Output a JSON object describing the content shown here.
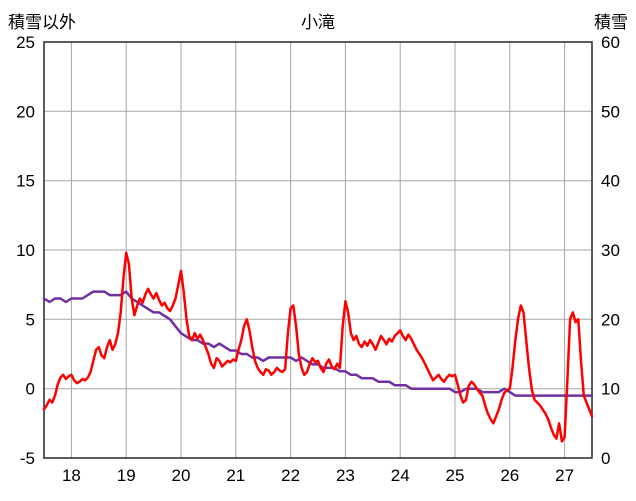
{
  "title": "小滝",
  "left_axis_label": "積雪以外",
  "right_axis_label": "積雪",
  "chart_data": {
    "type": "line",
    "title": "小滝",
    "x_range": [
      17.5,
      27.5
    ],
    "x_ticks": [
      18,
      19,
      20,
      21,
      22,
      23,
      24,
      25,
      26,
      27
    ],
    "left_axis": {
      "label": "積雪以外",
      "min": -5,
      "max": 25,
      "ticks": [
        -5,
        0,
        5,
        10,
        15,
        20,
        25
      ]
    },
    "right_axis": {
      "label": "積雪",
      "min": 0,
      "max": 60,
      "ticks": [
        0,
        10,
        20,
        30,
        40,
        50,
        60
      ]
    },
    "colors": {
      "grid": "#a6a6a6",
      "border": "#262626",
      "red_series": "#ff0000",
      "purple_series": "#7030a0"
    },
    "grid": true,
    "legend": "none",
    "series": [
      {
        "name": "積雪以外",
        "axis": "left",
        "color": "#ff0000",
        "points": [
          [
            17.5,
            -1.5
          ],
          [
            17.55,
            -1.2
          ],
          [
            17.6,
            -0.8
          ],
          [
            17.65,
            -1.0
          ],
          [
            17.7,
            -0.5
          ],
          [
            17.75,
            0.3
          ],
          [
            17.8,
            0.8
          ],
          [
            17.85,
            1.0
          ],
          [
            17.9,
            0.7
          ],
          [
            17.95,
            0.9
          ],
          [
            18.0,
            1.0
          ],
          [
            18.05,
            0.6
          ],
          [
            18.1,
            0.4
          ],
          [
            18.15,
            0.5
          ],
          [
            18.2,
            0.7
          ],
          [
            18.25,
            0.6
          ],
          [
            18.3,
            0.8
          ],
          [
            18.35,
            1.2
          ],
          [
            18.4,
            2.0
          ],
          [
            18.45,
            2.8
          ],
          [
            18.5,
            3.0
          ],
          [
            18.55,
            2.4
          ],
          [
            18.6,
            2.2
          ],
          [
            18.65,
            3.0
          ],
          [
            18.7,
            3.5
          ],
          [
            18.75,
            2.8
          ],
          [
            18.8,
            3.2
          ],
          [
            18.85,
            4.0
          ],
          [
            18.9,
            5.5
          ],
          [
            18.95,
            8.0
          ],
          [
            19.0,
            9.8
          ],
          [
            19.05,
            9.0
          ],
          [
            19.1,
            6.5
          ],
          [
            19.15,
            5.3
          ],
          [
            19.2,
            6.0
          ],
          [
            19.25,
            6.5
          ],
          [
            19.3,
            6.2
          ],
          [
            19.35,
            6.8
          ],
          [
            19.4,
            7.2
          ],
          [
            19.45,
            6.8
          ],
          [
            19.5,
            6.5
          ],
          [
            19.55,
            6.9
          ],
          [
            19.6,
            6.4
          ],
          [
            19.65,
            6.0
          ],
          [
            19.7,
            6.2
          ],
          [
            19.75,
            5.8
          ],
          [
            19.8,
            5.6
          ],
          [
            19.85,
            6.0
          ],
          [
            19.9,
            6.5
          ],
          [
            19.95,
            7.5
          ],
          [
            20.0,
            8.5
          ],
          [
            20.05,
            7.0
          ],
          [
            20.1,
            5.0
          ],
          [
            20.15,
            3.8
          ],
          [
            20.2,
            3.5
          ],
          [
            20.25,
            4.0
          ],
          [
            20.3,
            3.6
          ],
          [
            20.35,
            3.9
          ],
          [
            20.4,
            3.5
          ],
          [
            20.45,
            3.0
          ],
          [
            20.5,
            2.5
          ],
          [
            20.55,
            1.8
          ],
          [
            20.6,
            1.5
          ],
          [
            20.65,
            2.2
          ],
          [
            20.7,
            2.0
          ],
          [
            20.75,
            1.6
          ],
          [
            20.8,
            1.8
          ],
          [
            20.85,
            2.0
          ],
          [
            20.9,
            1.9
          ],
          [
            20.95,
            2.1
          ],
          [
            21.0,
            2.0
          ],
          [
            21.05,
            2.8
          ],
          [
            21.1,
            3.5
          ],
          [
            21.15,
            4.5
          ],
          [
            21.2,
            5.0
          ],
          [
            21.25,
            4.2
          ],
          [
            21.3,
            3.0
          ],
          [
            21.35,
            2.0
          ],
          [
            21.4,
            1.5
          ],
          [
            21.45,
            1.2
          ],
          [
            21.5,
            1.0
          ],
          [
            21.55,
            1.4
          ],
          [
            21.6,
            1.3
          ],
          [
            21.65,
            1.0
          ],
          [
            21.7,
            1.2
          ],
          [
            21.75,
            1.5
          ],
          [
            21.8,
            1.3
          ],
          [
            21.85,
            1.2
          ],
          [
            21.9,
            1.4
          ],
          [
            21.95,
            4.0
          ],
          [
            22.0,
            5.8
          ],
          [
            22.05,
            6.0
          ],
          [
            22.1,
            4.5
          ],
          [
            22.15,
            2.5
          ],
          [
            22.2,
            1.5
          ],
          [
            22.25,
            1.0
          ],
          [
            22.3,
            1.2
          ],
          [
            22.35,
            1.8
          ],
          [
            22.4,
            2.2
          ],
          [
            22.45,
            1.9
          ],
          [
            22.5,
            2.0
          ],
          [
            22.55,
            1.5
          ],
          [
            22.6,
            1.2
          ],
          [
            22.65,
            1.8
          ],
          [
            22.7,
            2.1
          ],
          [
            22.75,
            1.6
          ],
          [
            22.8,
            1.4
          ],
          [
            22.85,
            1.8
          ],
          [
            22.9,
            1.5
          ],
          [
            22.95,
            4.5
          ],
          [
            23.0,
            6.3
          ],
          [
            23.05,
            5.5
          ],
          [
            23.1,
            4.0
          ],
          [
            23.15,
            3.5
          ],
          [
            23.2,
            3.8
          ],
          [
            23.25,
            3.2
          ],
          [
            23.3,
            3.0
          ],
          [
            23.35,
            3.4
          ],
          [
            23.4,
            3.1
          ],
          [
            23.45,
            3.5
          ],
          [
            23.5,
            3.2
          ],
          [
            23.55,
            2.8
          ],
          [
            23.6,
            3.3
          ],
          [
            23.65,
            3.8
          ],
          [
            23.7,
            3.5
          ],
          [
            23.75,
            3.2
          ],
          [
            23.8,
            3.6
          ],
          [
            23.85,
            3.4
          ],
          [
            23.9,
            3.8
          ],
          [
            23.95,
            4.0
          ],
          [
            24.0,
            4.2
          ],
          [
            24.05,
            3.8
          ],
          [
            24.1,
            3.5
          ],
          [
            24.15,
            3.9
          ],
          [
            24.2,
            3.6
          ],
          [
            24.25,
            3.2
          ],
          [
            24.3,
            2.8
          ],
          [
            24.35,
            2.5
          ],
          [
            24.4,
            2.2
          ],
          [
            24.45,
            1.8
          ],
          [
            24.5,
            1.4
          ],
          [
            24.55,
            1.0
          ],
          [
            24.6,
            0.6
          ],
          [
            24.65,
            0.8
          ],
          [
            24.7,
            1.0
          ],
          [
            24.75,
            0.7
          ],
          [
            24.8,
            0.5
          ],
          [
            24.85,
            0.8
          ],
          [
            24.9,
            1.0
          ],
          [
            24.95,
            0.9
          ],
          [
            25.0,
            1.0
          ],
          [
            25.05,
            0.3
          ],
          [
            25.1,
            -0.5
          ],
          [
            25.15,
            -1.0
          ],
          [
            25.2,
            -0.8
          ],
          [
            25.25,
            0.2
          ],
          [
            25.3,
            0.5
          ],
          [
            25.35,
            0.3
          ],
          [
            25.4,
            0.0
          ],
          [
            25.45,
            -0.3
          ],
          [
            25.5,
            -0.5
          ],
          [
            25.55,
            -1.2
          ],
          [
            25.6,
            -1.8
          ],
          [
            25.65,
            -2.2
          ],
          [
            25.7,
            -2.5
          ],
          [
            25.75,
            -2.0
          ],
          [
            25.8,
            -1.5
          ],
          [
            25.85,
            -0.8
          ],
          [
            25.9,
            -0.3
          ],
          [
            25.95,
            -0.1
          ],
          [
            26.0,
            0.0
          ],
          [
            26.05,
            1.5
          ],
          [
            26.1,
            3.5
          ],
          [
            26.15,
            5.0
          ],
          [
            26.2,
            6.0
          ],
          [
            26.25,
            5.5
          ],
          [
            26.3,
            3.5
          ],
          [
            26.35,
            1.5
          ],
          [
            26.4,
            0.0
          ],
          [
            26.45,
            -0.8
          ],
          [
            26.5,
            -1.0
          ],
          [
            26.55,
            -1.2
          ],
          [
            26.6,
            -1.5
          ],
          [
            26.65,
            -1.8
          ],
          [
            26.7,
            -2.2
          ],
          [
            26.75,
            -2.8
          ],
          [
            26.8,
            -3.3
          ],
          [
            26.85,
            -3.6
          ],
          [
            26.9,
            -2.5
          ],
          [
            26.95,
            -3.8
          ],
          [
            27.0,
            -3.5
          ],
          [
            27.05,
            0.5
          ],
          [
            27.1,
            5.0
          ],
          [
            27.15,
            5.5
          ],
          [
            27.2,
            4.8
          ],
          [
            27.25,
            5.0
          ],
          [
            27.3,
            2.0
          ],
          [
            27.35,
            -0.5
          ],
          [
            27.4,
            -1.0
          ],
          [
            27.45,
            -1.5
          ],
          [
            27.5,
            -2.0
          ]
        ]
      },
      {
        "name": "積雪",
        "axis": "right",
        "color": "#7030a0",
        "points": [
          [
            17.5,
            23
          ],
          [
            17.6,
            22.5
          ],
          [
            17.7,
            23
          ],
          [
            17.8,
            23
          ],
          [
            17.9,
            22.5
          ],
          [
            18.0,
            23
          ],
          [
            18.1,
            23
          ],
          [
            18.2,
            23
          ],
          [
            18.3,
            23.5
          ],
          [
            18.4,
            24
          ],
          [
            18.5,
            24
          ],
          [
            18.6,
            24
          ],
          [
            18.7,
            23.5
          ],
          [
            18.8,
            23.5
          ],
          [
            18.9,
            23.5
          ],
          [
            19.0,
            24
          ],
          [
            19.05,
            23.5
          ],
          [
            19.1,
            23
          ],
          [
            19.2,
            22.5
          ],
          [
            19.3,
            22
          ],
          [
            19.4,
            21.5
          ],
          [
            19.5,
            21
          ],
          [
            19.6,
            21
          ],
          [
            19.7,
            20.5
          ],
          [
            19.8,
            20
          ],
          [
            19.9,
            19
          ],
          [
            20.0,
            18
          ],
          [
            20.1,
            17.5
          ],
          [
            20.2,
            17
          ],
          [
            20.3,
            17
          ],
          [
            20.4,
            16.5
          ],
          [
            20.5,
            16.5
          ],
          [
            20.6,
            16
          ],
          [
            20.7,
            16.5
          ],
          [
            20.8,
            16
          ],
          [
            20.9,
            15.5
          ],
          [
            21.0,
            15.5
          ],
          [
            21.1,
            15
          ],
          [
            21.2,
            15
          ],
          [
            21.3,
            14.5
          ],
          [
            21.4,
            14.5
          ],
          [
            21.5,
            14
          ],
          [
            21.6,
            14.5
          ],
          [
            21.7,
            14.5
          ],
          [
            21.8,
            14.5
          ],
          [
            21.9,
            14.5
          ],
          [
            22.0,
            14.5
          ],
          [
            22.1,
            14
          ],
          [
            22.2,
            14.5
          ],
          [
            22.3,
            14
          ],
          [
            22.4,
            13.5
          ],
          [
            22.5,
            13.5
          ],
          [
            22.6,
            13
          ],
          [
            22.7,
            13
          ],
          [
            22.8,
            13
          ],
          [
            22.9,
            12.5
          ],
          [
            23.0,
            12.5
          ],
          [
            23.1,
            12
          ],
          [
            23.2,
            12
          ],
          [
            23.3,
            11.5
          ],
          [
            23.4,
            11.5
          ],
          [
            23.5,
            11.5
          ],
          [
            23.6,
            11
          ],
          [
            23.7,
            11
          ],
          [
            23.8,
            11
          ],
          [
            23.9,
            10.5
          ],
          [
            24.0,
            10.5
          ],
          [
            24.1,
            10.5
          ],
          [
            24.2,
            10
          ],
          [
            24.3,
            10
          ],
          [
            24.4,
            10
          ],
          [
            24.5,
            10
          ],
          [
            24.6,
            10
          ],
          [
            24.7,
            10
          ],
          [
            24.8,
            10
          ],
          [
            24.9,
            10
          ],
          [
            25.0,
            9.5
          ],
          [
            25.1,
            9.5
          ],
          [
            25.2,
            10
          ],
          [
            25.3,
            10
          ],
          [
            25.4,
            10
          ],
          [
            25.5,
            9.5
          ],
          [
            25.6,
            9.5
          ],
          [
            25.7,
            9.5
          ],
          [
            25.8,
            9.5
          ],
          [
            25.9,
            10
          ],
          [
            26.0,
            9.5
          ],
          [
            26.1,
            9
          ],
          [
            26.2,
            9
          ],
          [
            26.3,
            9
          ],
          [
            26.4,
            9
          ],
          [
            26.5,
            9
          ],
          [
            26.6,
            9
          ],
          [
            26.7,
            9
          ],
          [
            26.8,
            9
          ],
          [
            26.9,
            9
          ],
          [
            27.0,
            9
          ],
          [
            27.1,
            9
          ],
          [
            27.2,
            9
          ],
          [
            27.3,
            9
          ],
          [
            27.4,
            9
          ],
          [
            27.5,
            9
          ]
        ]
      }
    ]
  }
}
